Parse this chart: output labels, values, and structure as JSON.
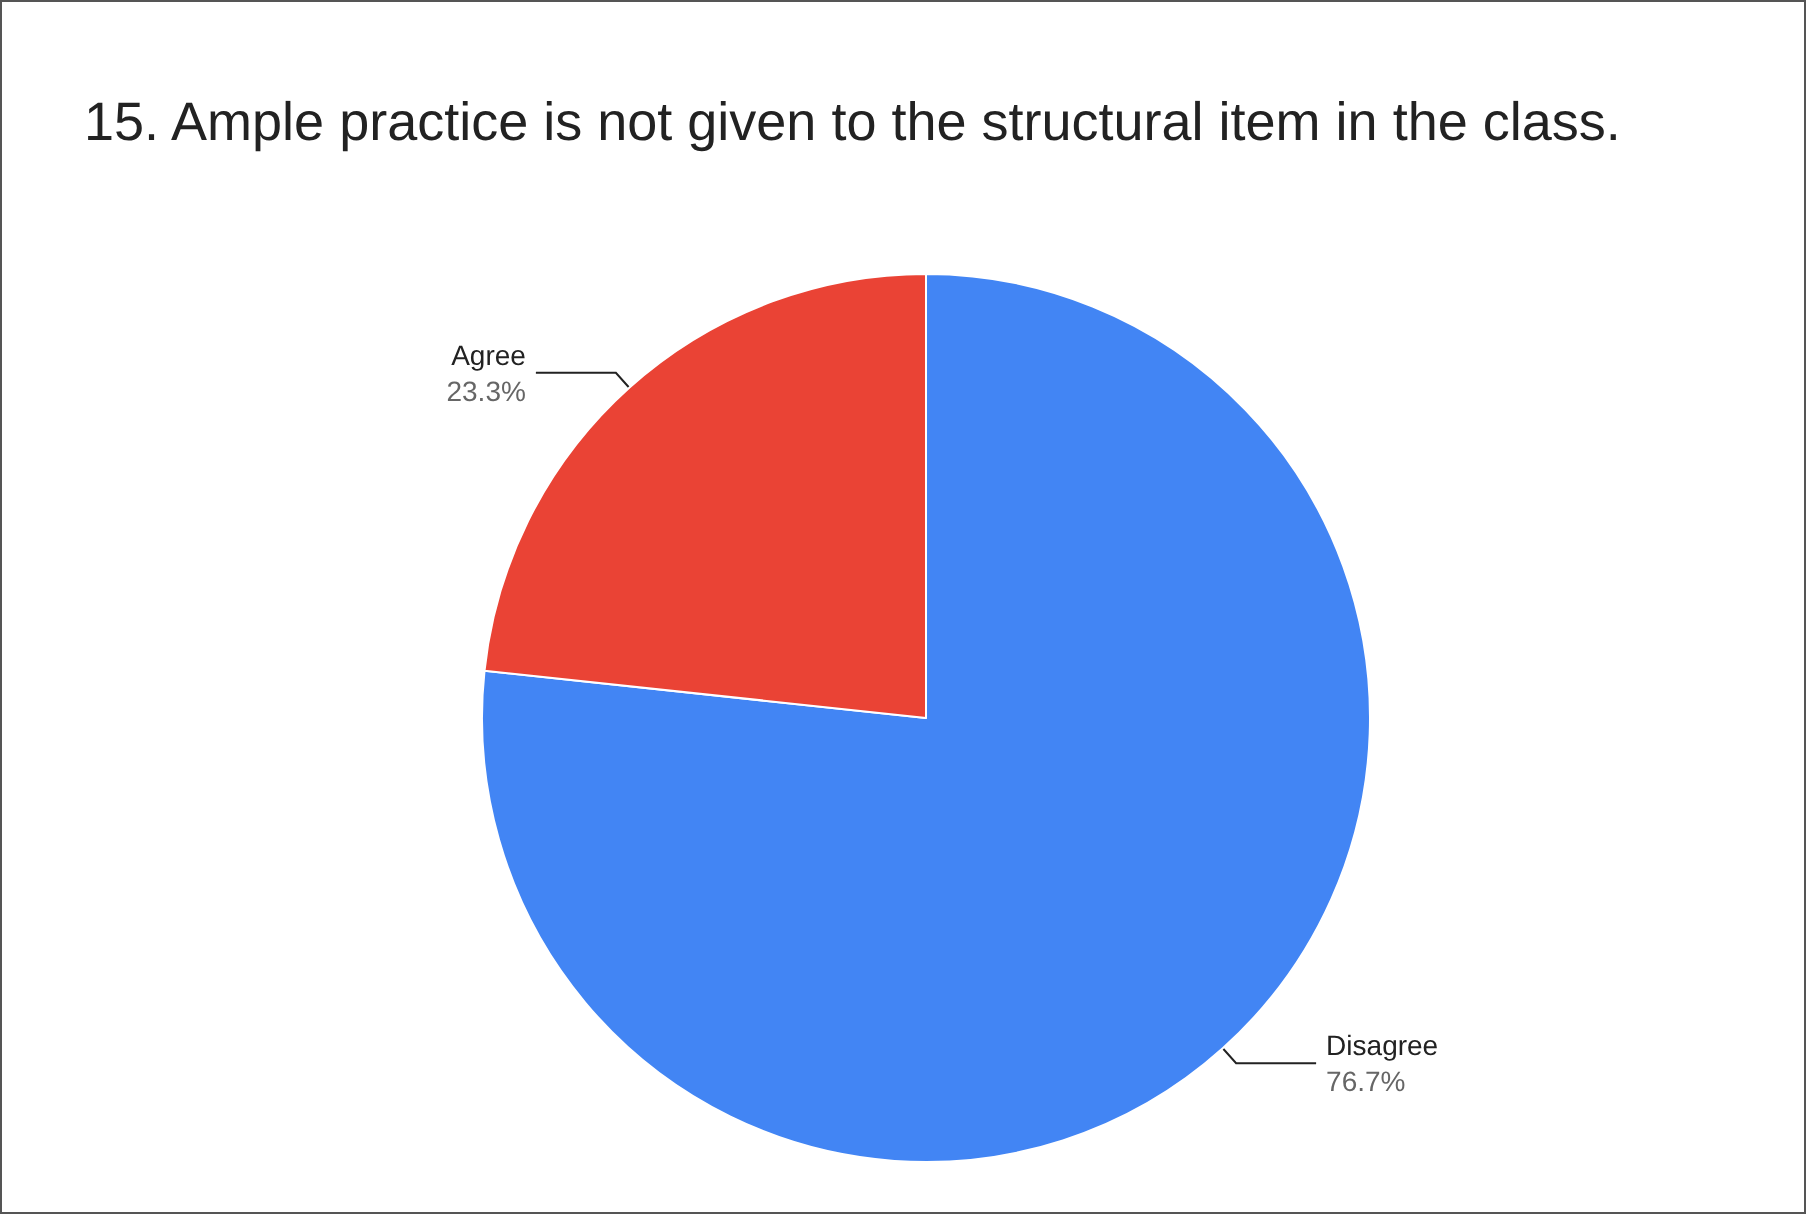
{
  "chart_data": {
    "type": "pie",
    "title": "15. Ample practice is not given to the structural item in the class.",
    "categories": [
      "Disagree",
      "Agree"
    ],
    "values": [
      76.7,
      23.3
    ],
    "value_labels": [
      "76.7%",
      "23.3%"
    ],
    "colors": [
      "#4285f4",
      "#ea4335"
    ],
    "legend": false
  }
}
